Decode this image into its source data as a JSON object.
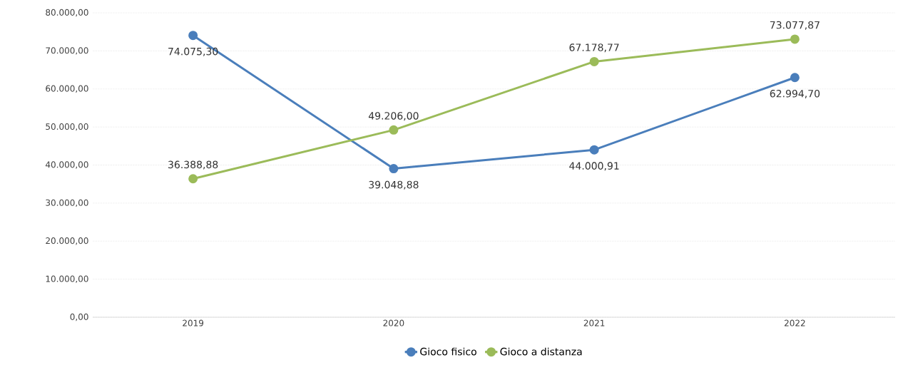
{
  "chart_data": {
    "type": "line",
    "categories": [
      "2019",
      "2020",
      "2021",
      "2022"
    ],
    "series": [
      {
        "name": "Gioco fisico",
        "color": "#4a7ebb",
        "values": [
          74075.3,
          39048.88,
          44000.91,
          62994.7
        ],
        "value_labels": [
          "74.075,30",
          "39.048,88",
          "44.000,91",
          "62.994,70"
        ]
      },
      {
        "name": "Gioco a distanza",
        "color": "#9bbb59",
        "values": [
          36388.88,
          49206.0,
          67178.77,
          73077.87
        ],
        "value_labels": [
          "36.388,88",
          "49.206,00",
          "67.178,77",
          "73.077,87"
        ]
      }
    ],
    "ylim": [
      0,
      80000
    ],
    "yticks": [
      {
        "value": 0,
        "label": "0,00"
      },
      {
        "value": 10000,
        "label": "10.000,00"
      },
      {
        "value": 20000,
        "label": "20.000,00"
      },
      {
        "value": 30000,
        "label": "30.000,00"
      },
      {
        "value": 40000,
        "label": "40.000,00"
      },
      {
        "value": 50000,
        "label": "50.000,00"
      },
      {
        "value": 60000,
        "label": "60.000,00"
      },
      {
        "value": 70000,
        "label": "70.000,00"
      },
      {
        "value": 80000,
        "label": "80.000,00"
      }
    ],
    "grid": "y",
    "legend": "bottom",
    "marker": "circle",
    "line_style": "solid"
  }
}
